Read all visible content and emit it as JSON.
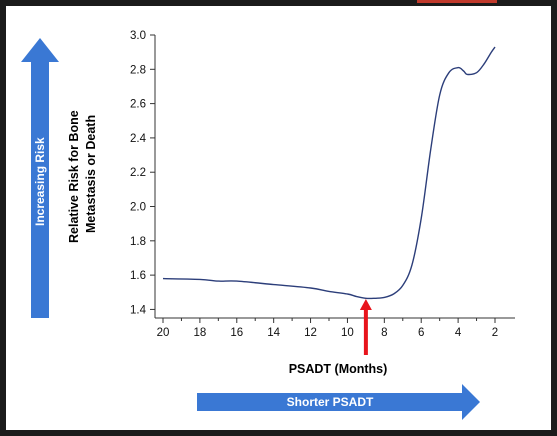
{
  "chart_data": {
    "type": "line",
    "xlabel": "PSADT (Months)",
    "ylabel_line1": "Relative Risk for Bone",
    "ylabel_line2": "Metastasis or Death",
    "xlim": [
      20,
      2
    ],
    "ylim": [
      1.35,
      3.0
    ],
    "x_ticks": [
      "20",
      "18",
      "16",
      "14",
      "12",
      "10",
      "8",
      "6",
      "4",
      "2"
    ],
    "y_ticks": [
      "3.0",
      "2.8",
      "2.6",
      "2.4",
      "2.2",
      "2.0",
      "1.8",
      "1.6",
      "1.4"
    ],
    "x": [
      20,
      18,
      17,
      16,
      14,
      12,
      11,
      10,
      9.5,
      9,
      8.5,
      8,
      7.5,
      7,
      6.5,
      6,
      5.5,
      5,
      4.5,
      4,
      3.7,
      3.5,
      3,
      2.6,
      2.2,
      2
    ],
    "y": [
      1.58,
      1.575,
      1.565,
      1.565,
      1.545,
      1.525,
      1.505,
      1.49,
      1.475,
      1.465,
      1.465,
      1.47,
      1.49,
      1.54,
      1.66,
      1.93,
      2.32,
      2.65,
      2.78,
      2.81,
      2.79,
      2.77,
      2.78,
      2.83,
      2.9,
      2.93
    ],
    "series_color": "#2c3e7a",
    "arrow_color": "#e8141c",
    "arrow_x": 9,
    "grid": false
  },
  "annotations": {
    "left_arrow_label": "Increasing Risk",
    "bottom_arrow_label": "Shorter PSADT",
    "arrow_fill": "#3a78d4"
  }
}
